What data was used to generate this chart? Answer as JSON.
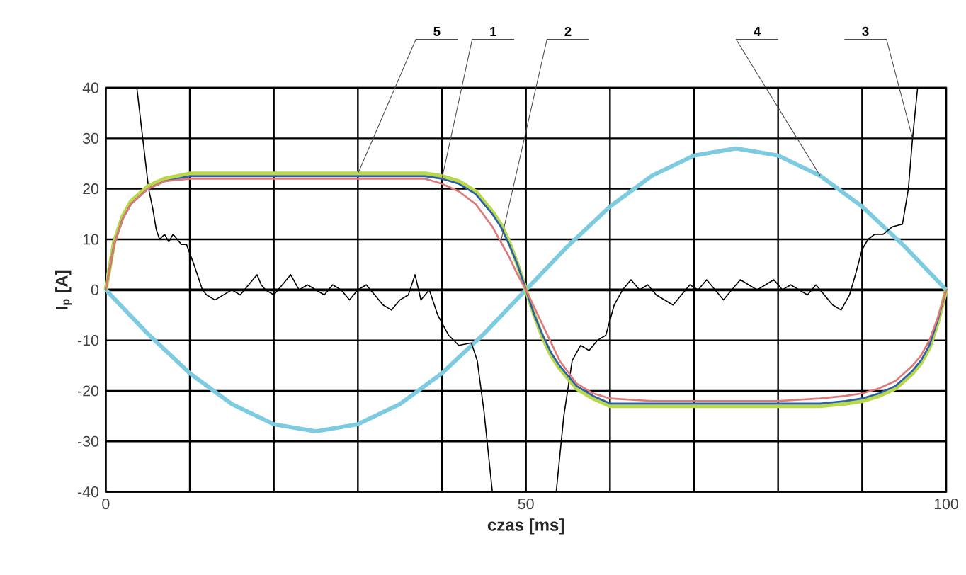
{
  "chart_data": {
    "type": "line",
    "xlabel": "czas [ms]",
    "ylabel": "I$_{p}$ [A]",
    "xlim": [
      0,
      100
    ],
    "ylim": [
      -40,
      40
    ],
    "xticks": [
      0,
      {
        "value": 10,
        "label": null
      },
      {
        "value": 20,
        "label": null
      },
      {
        "value": 30,
        "label": null
      },
      {
        "value": 40,
        "label": null
      },
      50,
      {
        "value": 60,
        "label": null
      },
      {
        "value": 70,
        "label": null
      },
      {
        "value": 80,
        "label": null
      },
      {
        "value": 90,
        "label": null
      },
      100
    ],
    "yticks": [
      -40,
      -30,
      -20,
      -10,
      0,
      10,
      20,
      30,
      40
    ],
    "grid": true,
    "marker": "none",
    "line_style": "solid",
    "series": [
      {
        "name": "4",
        "color": "#7ccbe0",
        "x": [
          0,
          5,
          10,
          15,
          20,
          25,
          30,
          35,
          40,
          45,
          50,
          55,
          60,
          65,
          70,
          75,
          80,
          85,
          90,
          95,
          100
        ],
        "values": [
          0,
          -8.7,
          -16.5,
          -22.6,
          -26.6,
          -28,
          -26.6,
          -22.6,
          -16.5,
          -8.7,
          0,
          8.7,
          16.5,
          22.6,
          26.6,
          28,
          26.6,
          22.6,
          16.5,
          8.7,
          0
        ]
      },
      {
        "name": "3",
        "color": "#000000",
        "x": [
          3.7,
          4.4,
          5.1,
          5.6,
          6.0,
          6.4,
          7,
          7.5,
          8,
          8.5,
          9,
          9.6,
          10.5,
          11.5,
          12,
          13,
          14,
          15,
          16,
          17,
          18,
          18.5,
          19,
          20,
          21,
          22,
          23,
          24,
          25,
          26,
          27,
          28,
          29,
          30,
          31,
          32,
          33,
          34,
          35,
          36,
          36.8,
          37.5,
          38.5,
          39.5,
          40.8,
          42,
          43.5,
          44.2,
          45,
          46,
          50,
          53.6,
          54.5,
          55.5,
          56.5,
          57.5,
          58.5,
          59.5,
          60.5,
          61.5,
          62.5,
          63.5,
          64.5,
          65.5,
          66.5,
          67.5,
          68.5,
          69.5,
          70.5,
          71.5,
          72.5,
          73.5,
          74.5,
          75.5,
          76.5,
          77.5,
          78.5,
          79.5,
          80.5,
          81.5,
          82.5,
          83.5,
          84.5,
          85.5,
          86.5,
          87.5,
          88.5,
          89.2,
          90,
          90.7,
          91.5,
          92.5,
          93.6,
          94.8,
          95.5,
          96,
          96.6
        ],
        "values": [
          40,
          30,
          20,
          16,
          12,
          10,
          11,
          9.5,
          11,
          10,
          9,
          9,
          5,
          0,
          -1,
          -2,
          -1,
          0,
          -1,
          1,
          3,
          1,
          0,
          -1,
          1,
          3,
          0,
          1,
          0,
          -1,
          1,
          0,
          -2,
          0,
          1,
          -1,
          -3,
          -4,
          -2,
          -1,
          3,
          -2,
          0,
          -5,
          -9,
          -11,
          -10.5,
          -14,
          -24,
          -40,
          null,
          -40,
          -25,
          -14,
          -11,
          -12,
          -10,
          -9,
          -3,
          0,
          2,
          0,
          1,
          -1,
          -2,
          -3,
          -1,
          1,
          0,
          2,
          0,
          -2,
          0,
          2,
          1,
          0,
          1,
          2,
          0,
          1,
          0,
          -1,
          1,
          -1,
          -3,
          -4,
          -1,
          3,
          8,
          10,
          11,
          11,
          12.5,
          13,
          20,
          30,
          40
        ]
      },
      {
        "name": "5",
        "color": "#b8d84a",
        "x": [
          0,
          1,
          2,
          3,
          5,
          7,
          10,
          15,
          20,
          25,
          30,
          35,
          38,
          40,
          42,
          44,
          46,
          47,
          48,
          49,
          50,
          51,
          52,
          53,
          54,
          56,
          58,
          60,
          65,
          70,
          75,
          80,
          85,
          88,
          90,
          92,
          94,
          95,
          96,
          97,
          98,
          99,
          100
        ],
        "values": [
          0,
          9.5,
          14.5,
          17.5,
          20.5,
          22,
          23,
          23,
          23,
          23,
          23,
          23,
          23,
          22.5,
          21.5,
          19.5,
          15.5,
          13,
          9.5,
          5,
          0,
          -5,
          -9.5,
          -13,
          -15.5,
          -19.5,
          -21.5,
          -23,
          -23,
          -23,
          -23,
          -23,
          -23,
          -22.5,
          -22,
          -21,
          -19.5,
          -18,
          -16.5,
          -14.5,
          -11.5,
          -6.5,
          0
        ]
      },
      {
        "name": "1",
        "color": "#2a5fb0",
        "x": [
          0,
          1,
          2,
          3,
          5,
          7,
          10,
          15,
          20,
          25,
          30,
          35,
          38,
          40,
          42,
          44,
          46,
          47,
          48,
          49,
          50,
          51,
          52,
          53,
          54,
          56,
          58,
          60,
          65,
          70,
          75,
          80,
          85,
          88,
          90,
          92,
          94,
          95,
          96,
          97,
          98,
          99,
          100
        ],
        "values": [
          0,
          9,
          14,
          17,
          20,
          21.5,
          22.5,
          22.5,
          22.5,
          22.5,
          22.5,
          22.5,
          22.5,
          22,
          21,
          19,
          15,
          12.5,
          9,
          5,
          0,
          -5,
          -9,
          -12.5,
          -15,
          -19,
          -21,
          -22.5,
          -22.5,
          -22.5,
          -22.5,
          -22.5,
          -22.5,
          -22,
          -21.5,
          -20.5,
          -19,
          -17.5,
          -16,
          -14,
          -11,
          -6,
          0
        ]
      },
      {
        "name": "2",
        "color": "#e07878",
        "x": [
          0,
          1,
          2,
          3,
          5,
          7,
          10,
          15,
          20,
          25,
          30,
          35,
          38,
          40,
          42,
          44,
          46,
          47,
          48,
          49,
          50,
          51,
          52,
          53,
          54,
          56,
          58,
          60,
          65,
          70,
          75,
          80,
          85,
          88,
          90,
          92,
          94,
          95,
          96,
          97,
          98,
          99,
          100
        ],
        "values": [
          0,
          9,
          14,
          17,
          20,
          21.5,
          22,
          22,
          22,
          22,
          22,
          22,
          22,
          21,
          19.5,
          17,
          12.5,
          9.5,
          6.5,
          3,
          0,
          -3.5,
          -7,
          -10.5,
          -14,
          -18.5,
          -20.5,
          -21.5,
          -22,
          -22,
          -22,
          -22,
          -21.5,
          -21,
          -20.5,
          -19.5,
          -18,
          -16.5,
          -15,
          -13,
          -10,
          -5.5,
          0
        ]
      }
    ]
  }
}
